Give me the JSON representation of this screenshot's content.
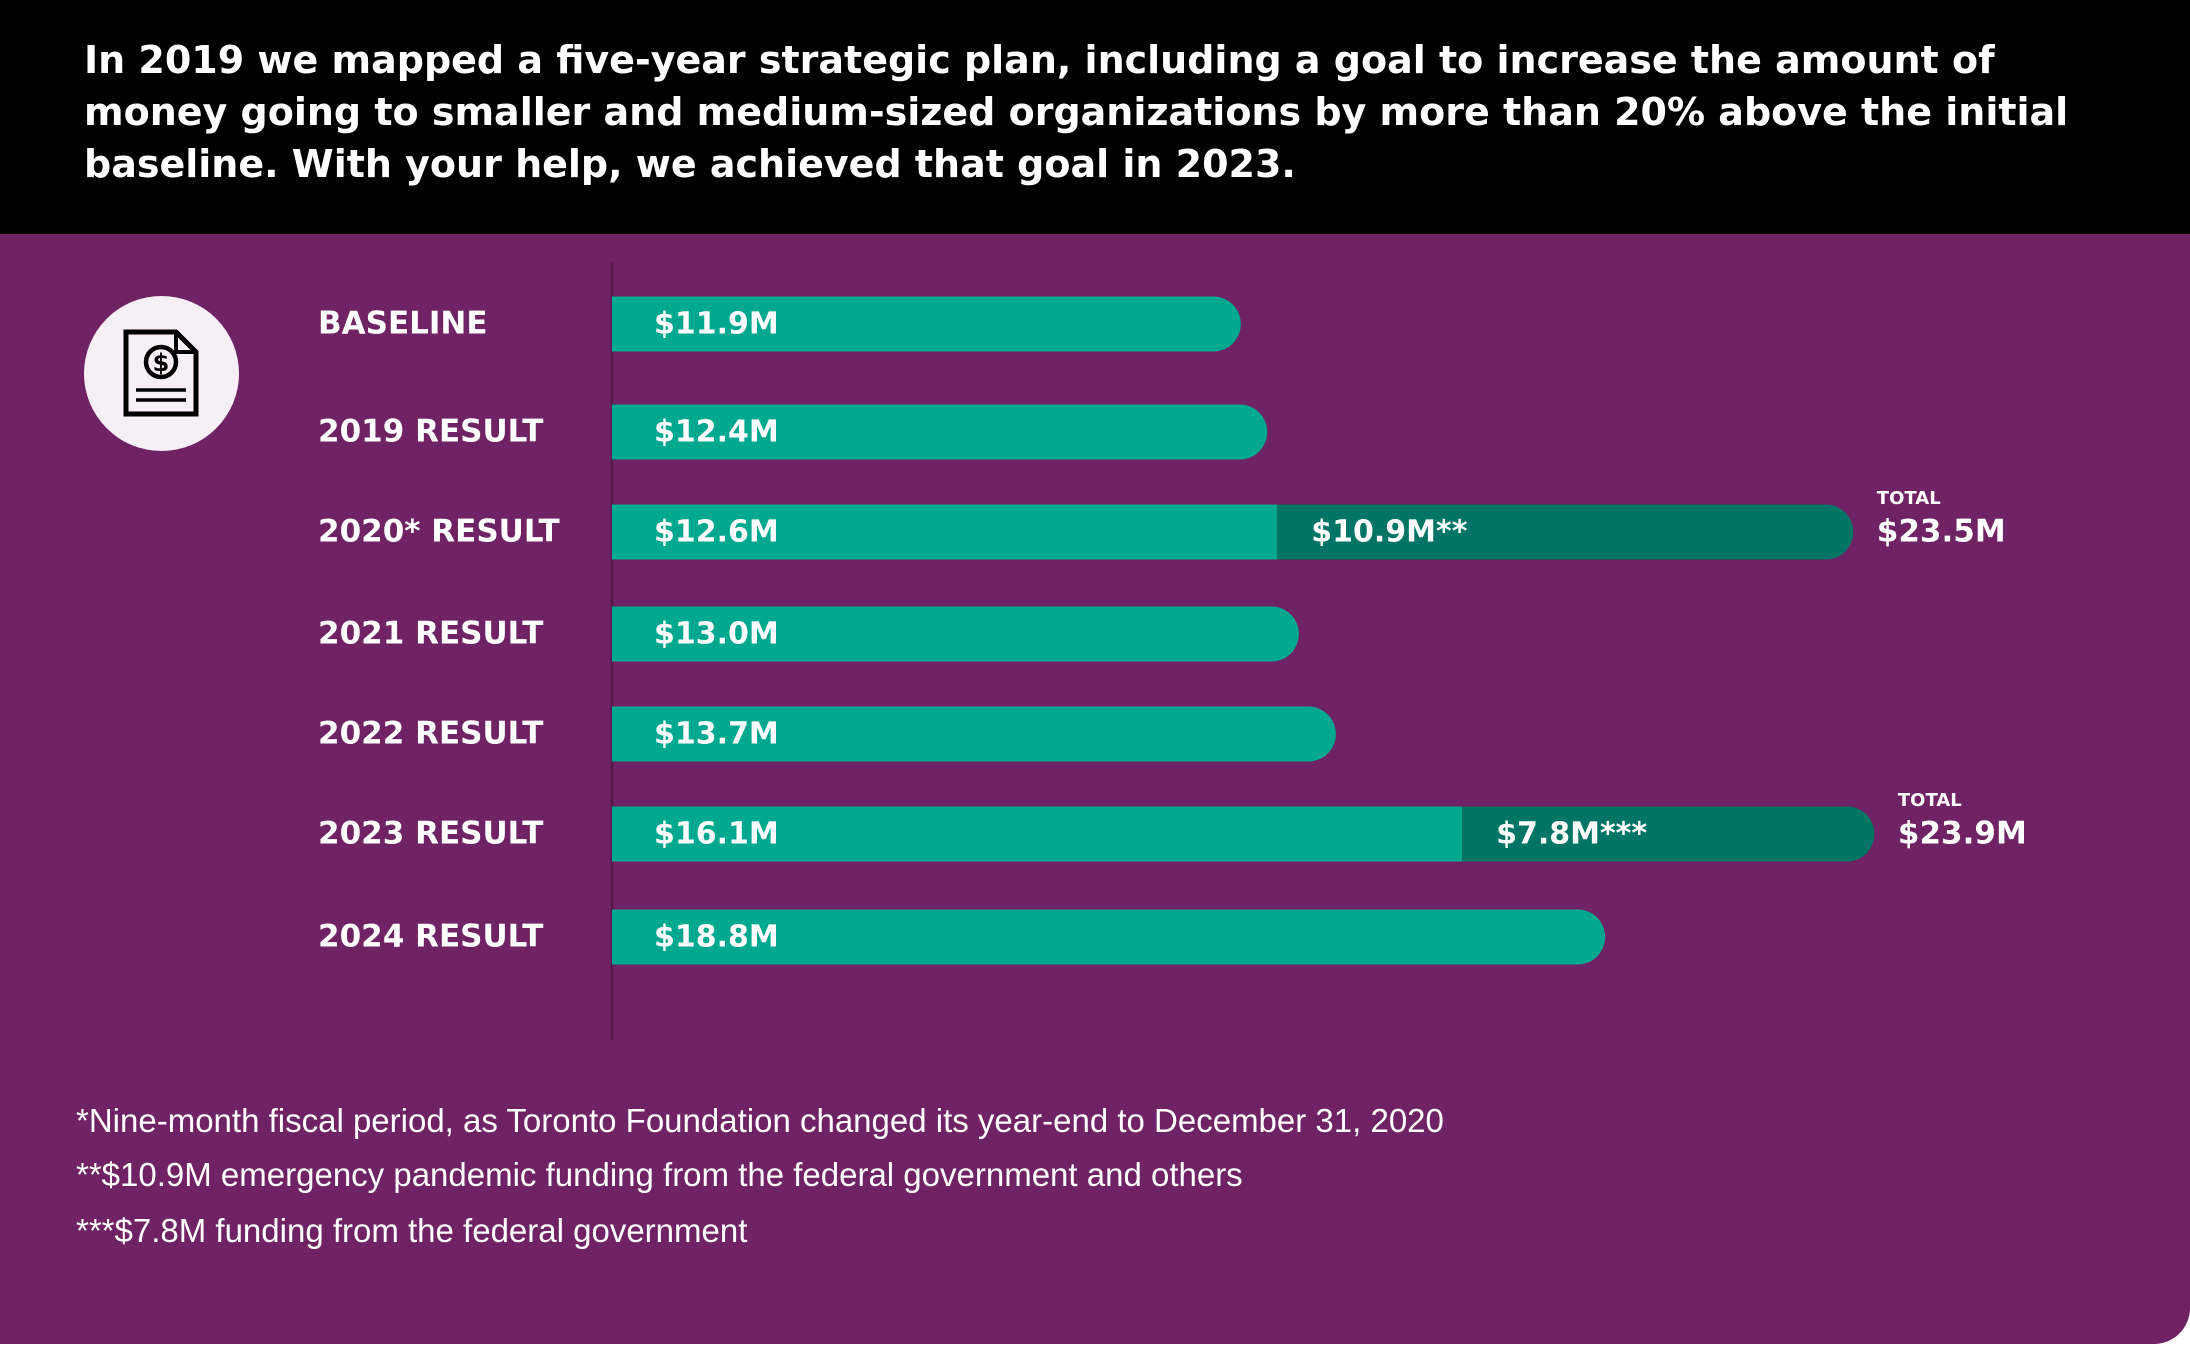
{
  "headline": "In 2019 we mapped a five-year strategic plan, including a goal to increase the amount of money going to smaller and medium-sized organizations by more than 20% above the initial baseline. With your help, we achieved that goal in 2023.",
  "icon": "dollar-document-icon",
  "colors": {
    "header_bg": "#000000",
    "panel_bg": "#6f2264",
    "primary_bar": "#00a88f",
    "secondary_bar": "#007465",
    "text": "#ffffff"
  },
  "chart_data": {
    "type": "bar",
    "orientation": "horizontal",
    "stacked": true,
    "categories": [
      "BASELINE",
      "2019 RESULT",
      "2020* RESULT",
      "2021 RESULT",
      "2022 RESULT",
      "2023 RESULT",
      "2024 RESULT"
    ],
    "series": [
      {
        "values": [
          11.9,
          12.4,
          12.6,
          13.0,
          13.7,
          16.1,
          18.8
        ],
        "labels": [
          "$11.9M",
          "$12.4M",
          "$12.6M",
          "$13.0M",
          "$13.7M",
          "$16.1M",
          "$18.8M"
        ]
      },
      {
        "values": [
          null,
          null,
          10.9,
          null,
          null,
          7.8,
          null
        ],
        "labels": [
          null,
          null,
          "$10.9M**",
          null,
          null,
          "$7.8M***",
          null
        ]
      }
    ],
    "totals": [
      {
        "category": "2020* RESULT",
        "caption": "TOTAL",
        "label": "$23.5M"
      },
      {
        "category": "2023 RESULT",
        "caption": "TOTAL",
        "label": "$23.9M"
      }
    ],
    "unit": "$M",
    "grid": false,
    "legend": "none"
  },
  "footnotes": [
    "*Nine-month fiscal period, as Toronto Foundation changed its year-end to December 31, 2020",
    "**$10.9M emergency pandemic funding from the federal government and others",
    "***$7.8M funding from the federal government"
  ]
}
